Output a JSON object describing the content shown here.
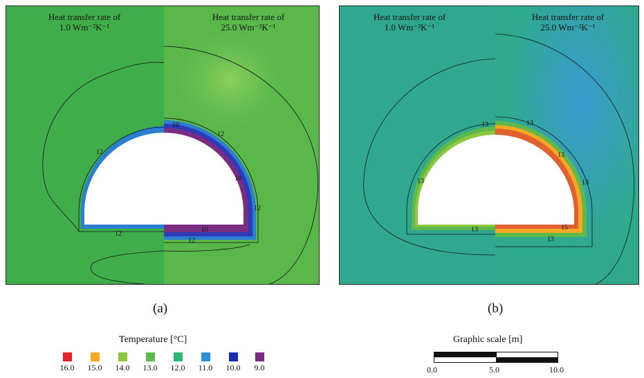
{
  "panel_a": {
    "caption": "(a)",
    "left_label_line1": "Heat transfer rate of",
    "left_label_line2": "1.0 Wm⁻²K⁻¹",
    "right_label_line1": "Heat transfer rate of",
    "right_label_line2": "25.0 Wm⁻²K⁻¹",
    "contour_labels": [
      "12",
      "10",
      "12",
      "10",
      "12",
      "12",
      "10",
      "12"
    ]
  },
  "panel_b": {
    "caption": "(b)",
    "left_label_line1": "Heat transfer rate of",
    "left_label_line2": "1.0 Wm⁻²K⁻¹",
    "right_label_line1": "Heat transfer rate of",
    "right_label_line2": "25.0 Wm⁻²K⁻¹",
    "contour_labels": [
      "13",
      "13",
      "13",
      "13",
      "13",
      "13",
      "13",
      "15",
      "13"
    ]
  },
  "legend": {
    "title": "Temperature [°C]",
    "items": [
      {
        "value": "16.0",
        "color": "#e8202a"
      },
      {
        "value": "15.0",
        "color": "#f7a823"
      },
      {
        "value": "14.0",
        "color": "#8dc63f"
      },
      {
        "value": "13.0",
        "color": "#5fb84a"
      },
      {
        "value": "12.0",
        "color": "#2bb673"
      },
      {
        "value": "11.0",
        "color": "#2f8fd8"
      },
      {
        "value": "10.0",
        "color": "#1a2fb0"
      },
      {
        "value": "9.0",
        "color": "#7b2c83"
      }
    ]
  },
  "scale": {
    "title": "Graphic scale [m]",
    "ticks": [
      "0.0",
      "5.0",
      "10.0"
    ]
  }
}
